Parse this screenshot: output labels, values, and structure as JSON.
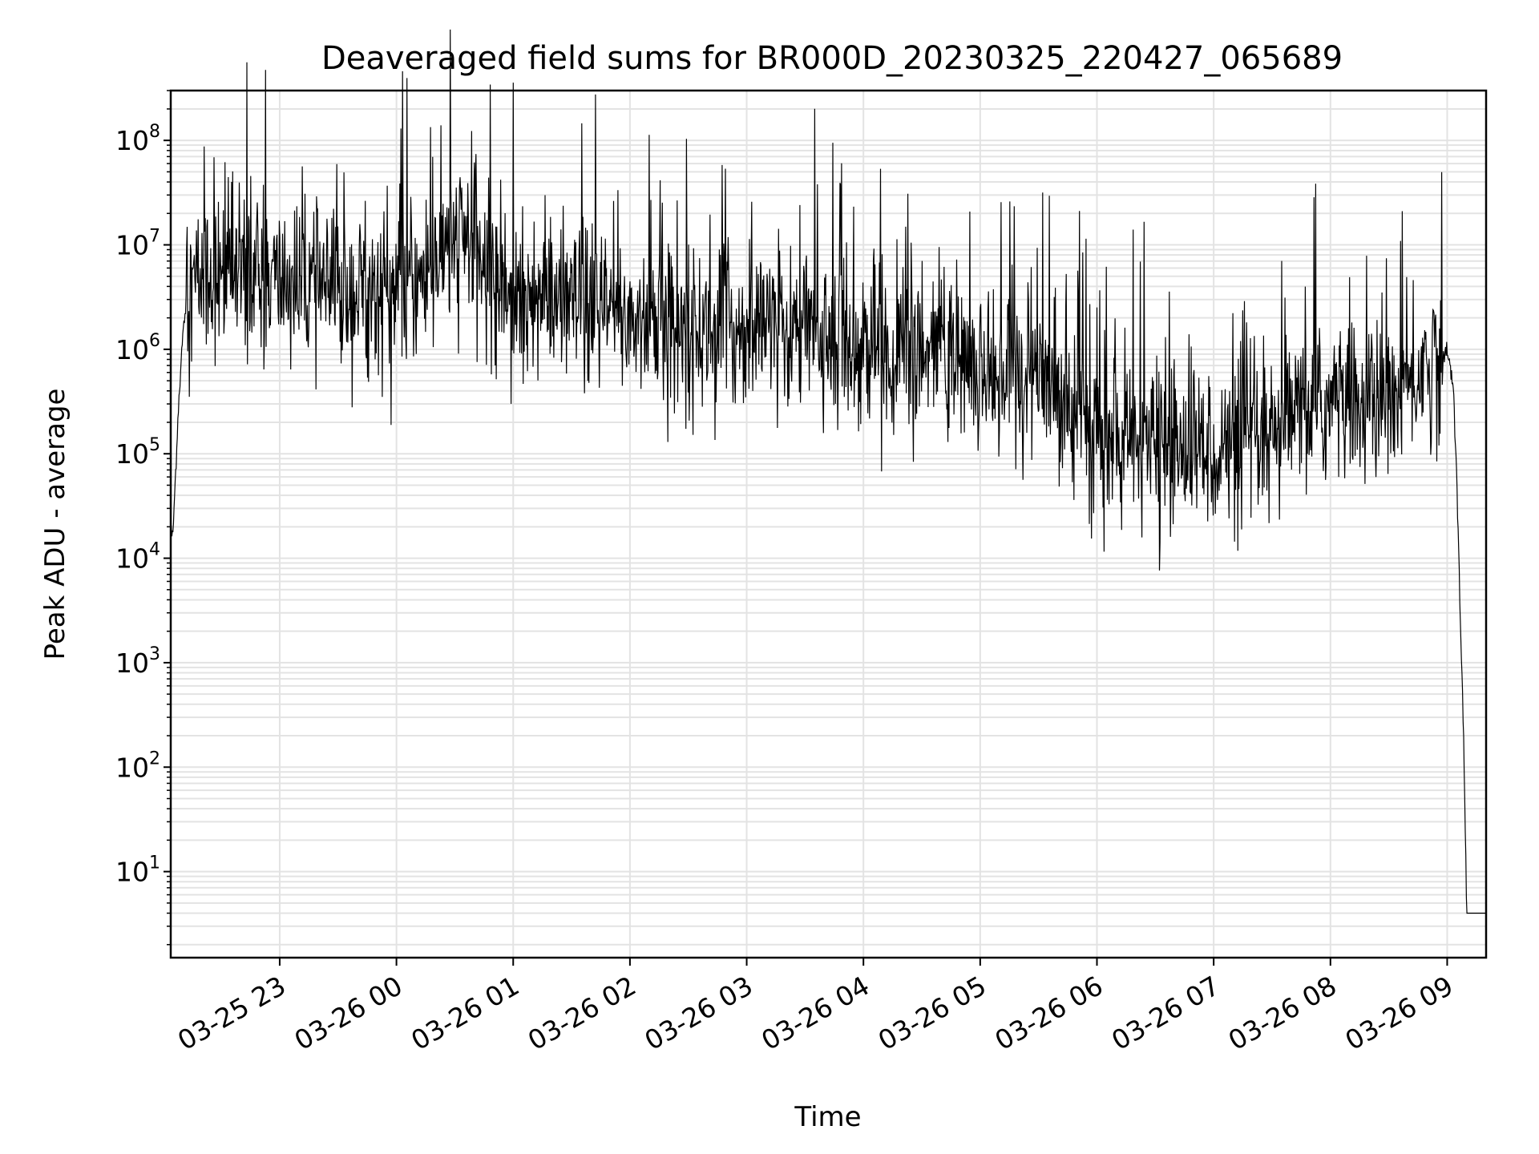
{
  "chart_data": {
    "type": "line",
    "title": "Deaveraged field sums for BR000D_20230325_220427_065689",
    "xlabel": "Time",
    "ylabel": "Peak ADU - average",
    "y_scale": "log",
    "grid": true,
    "line_color": "#000000",
    "x_range": [
      "2023-03-25 22:04",
      "2023-03-26 09:20"
    ],
    "y_range": [
      1.5,
      300000000
    ],
    "x_ticks": [
      "03-25 23",
      "03-26 00",
      "03-26 01",
      "03-26 02",
      "03-26 03",
      "03-26 04",
      "03-26 05",
      "03-26 06",
      "03-26 07",
      "03-26 08",
      "03-26 09"
    ],
    "y_ticks": [
      {
        "base": "10",
        "exp": "1",
        "value": 10
      },
      {
        "base": "10",
        "exp": "2",
        "value": 100
      },
      {
        "base": "10",
        "exp": "3",
        "value": 1000
      },
      {
        "base": "10",
        "exp": "4",
        "value": 10000
      },
      {
        "base": "10",
        "exp": "5",
        "value": 100000
      },
      {
        "base": "10",
        "exp": "6",
        "value": 1000000
      },
      {
        "base": "10",
        "exp": "7",
        "value": 10000000
      },
      {
        "base": "10",
        "exp": "8",
        "value": 100000000
      }
    ],
    "series": [
      {
        "x": [
          "2023-03-25 22:04",
          "2023-03-25 22:05",
          "2023-03-25 22:06",
          "2023-03-25 22:08",
          "2023-03-25 22:10",
          "2023-03-25 22:12",
          "2023-03-25 22:15",
          "2023-03-25 22:20",
          "2023-03-25 22:30",
          "2023-03-25 22:45",
          "2023-03-25 23:00",
          "2023-03-25 23:15",
          "2023-03-25 23:30",
          "2023-03-25 23:45",
          "2023-03-26 00:00",
          "2023-03-26 00:15",
          "2023-03-26 00:25",
          "2023-03-26 00:35",
          "2023-03-26 00:45",
          "2023-03-26 01:00",
          "2023-03-26 01:30",
          "2023-03-26 02:00",
          "2023-03-26 02:30",
          "2023-03-26 03:00",
          "2023-03-26 03:30",
          "2023-03-26 04:00",
          "2023-03-26 04:30",
          "2023-03-26 05:00",
          "2023-03-26 05:30",
          "2023-03-26 05:50",
          "2023-03-26 06:00",
          "2023-03-26 06:30",
          "2023-03-26 07:00",
          "2023-03-26 07:30",
          "2023-03-26 07:45",
          "2023-03-26 08:00",
          "2023-03-26 08:30",
          "2023-03-26 08:50",
          "2023-03-26 09:00",
          "2023-03-26 09:03",
          "2023-03-26 09:05",
          "2023-03-26 09:07",
          "2023-03-26 09:08",
          "2023-03-26 09:10",
          "2023-03-26 09:20"
        ],
        "values": [
          20000,
          15000,
          40000,
          300000,
          1200000,
          3000000,
          4000000,
          5000000,
          5000000,
          5000000,
          4500000,
          4000000,
          3500000,
          3500000,
          3500000,
          5000000,
          9000000,
          12000000,
          6000000,
          3500000,
          2500000,
          2000000,
          1500000,
          1500000,
          1500000,
          1000000,
          800000,
          700000,
          500000,
          300000,
          120000,
          120000,
          110000,
          110000,
          250000,
          300000,
          300000,
          700000,
          900000,
          500000,
          50000,
          2000,
          500,
          4,
          4
        ]
      }
    ]
  }
}
